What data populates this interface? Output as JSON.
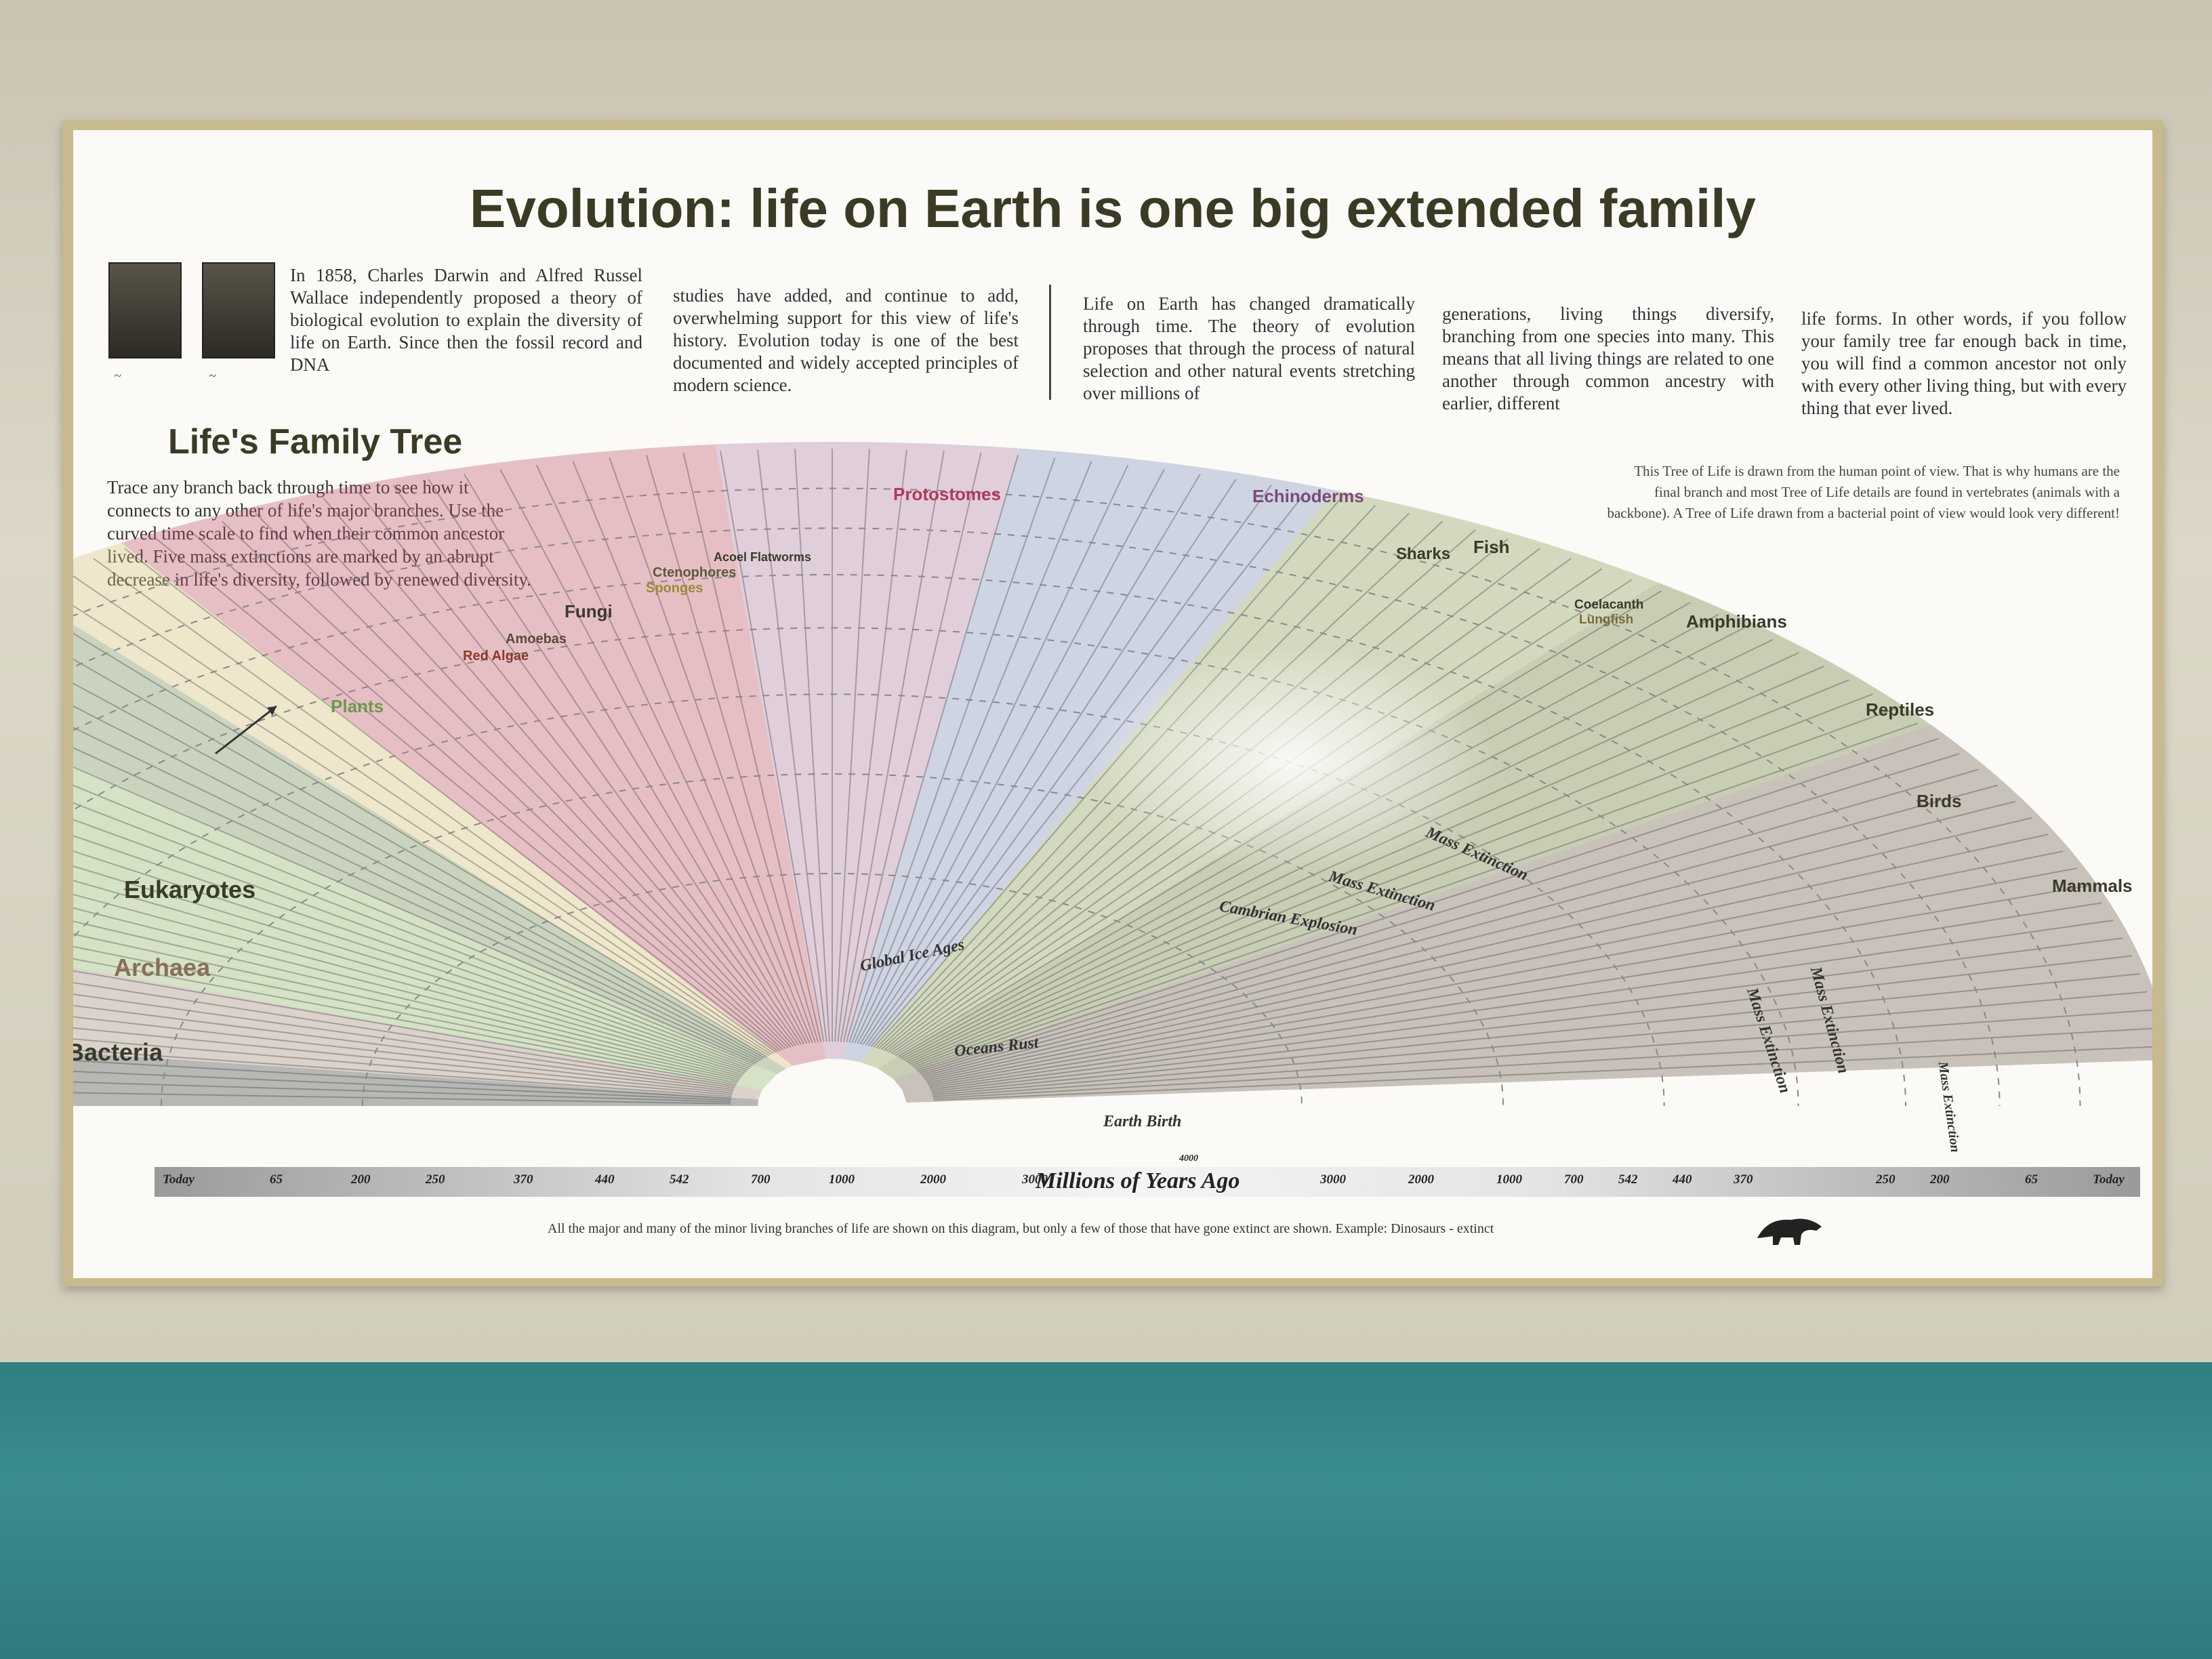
{
  "title": "Evolution: life on Earth is one big extended family",
  "intro_columns": [
    "In 1858, Charles Darwin and Alfred Russel Wallace independently proposed a theory of biological evolution to explain the diversity of life on Earth. Since then the fossil record and DNA",
    "studies have added, and continue to add, overwhelming support for this view of life's history. Evolution today is one of the best documented and widely accepted principles of modern science.",
    "Life on Earth has changed dramatically through time. The theory of evolution proposes that through the process of natural selection and other natural events stretching over millions of",
    "generations, living things diversify, branching from one species into many. This means that all living things are related to one another through common ancestry with earlier, different",
    "life forms. In other words, if you follow your family tree far enough back in time, you will find a common ancestor not only with every other living thing, but with every thing that ever lived."
  ],
  "family_tree_title": "Life's Family Tree",
  "family_tree_intro": "Trace any branch back through time to see how it connects to any other of life's major branches. Use the curved time scale to find when their common ancestor lived. Five mass extinctions are marked by an abrupt decrease in life's diversity, followed by renewed diversity.",
  "right_note": "This Tree of Life is drawn from the human point of view. That is why humans are the final branch and most Tree of Life details are found in vertebrates (animals with a backbone). A Tree of Life drawn from a bacterial point of view would look very different!",
  "groups": {
    "bacteria": "Bacteria",
    "archaea": "Archaea",
    "eukaryotes": "Eukaryotes",
    "plants": "Plants",
    "red_algae": "Red Algae",
    "amoebas": "Amoebas",
    "fungi": "Fungi",
    "sponges": "Sponges",
    "ctenophores": "Ctenophores",
    "acoel": "Acoel Flatworms",
    "protostomes": "Protostomes",
    "echinoderms": "Echinoderms",
    "sharks": "Sharks",
    "fish": "Fish",
    "coelacanth": "Coelacanth",
    "lungfish": "Lungfish",
    "amphibians": "Amphibians",
    "reptiles": "Reptiles",
    "birds": "Birds",
    "mammals": "Mammals"
  },
  "events": {
    "global_ice_ages": "Global Ice Ages",
    "oceans_rust": "Oceans Rust",
    "earth_birth": "Earth Birth",
    "cambrian": "Cambrian Explosion",
    "mass_extinction": "Mass Extinction"
  },
  "axis": {
    "label": "Millions of Years Ago",
    "left_ticks": [
      "Today",
      "65",
      "200",
      "250",
      "370",
      "440",
      "542",
      "700",
      "1000",
      "2000",
      "3000"
    ],
    "center_tick": "4000",
    "right_ticks": [
      "3000",
      "2000",
      "1000",
      "700",
      "542",
      "440",
      "370",
      "250",
      "200",
      "65",
      "Today"
    ]
  },
  "bottom_note": "All the major and many of the minor living branches of life are shown on this diagram, but only a few of those that have gone extinct are shown. Example: Dinosaurs - extinct",
  "colors": {
    "bacteria": "#3a3a3a",
    "archaea": "#a08a7a",
    "plants": "#8fb46a",
    "fungi": "#6f8a55",
    "sponges": "#d8c27a",
    "protostomes": "#c0506a",
    "echinoderms": "#b07aa8",
    "fish": "#7a8cbc",
    "amphibians": "#8a9a5a",
    "reptiles": "#6a7a3a",
    "mammals": "#6a5a4a"
  }
}
